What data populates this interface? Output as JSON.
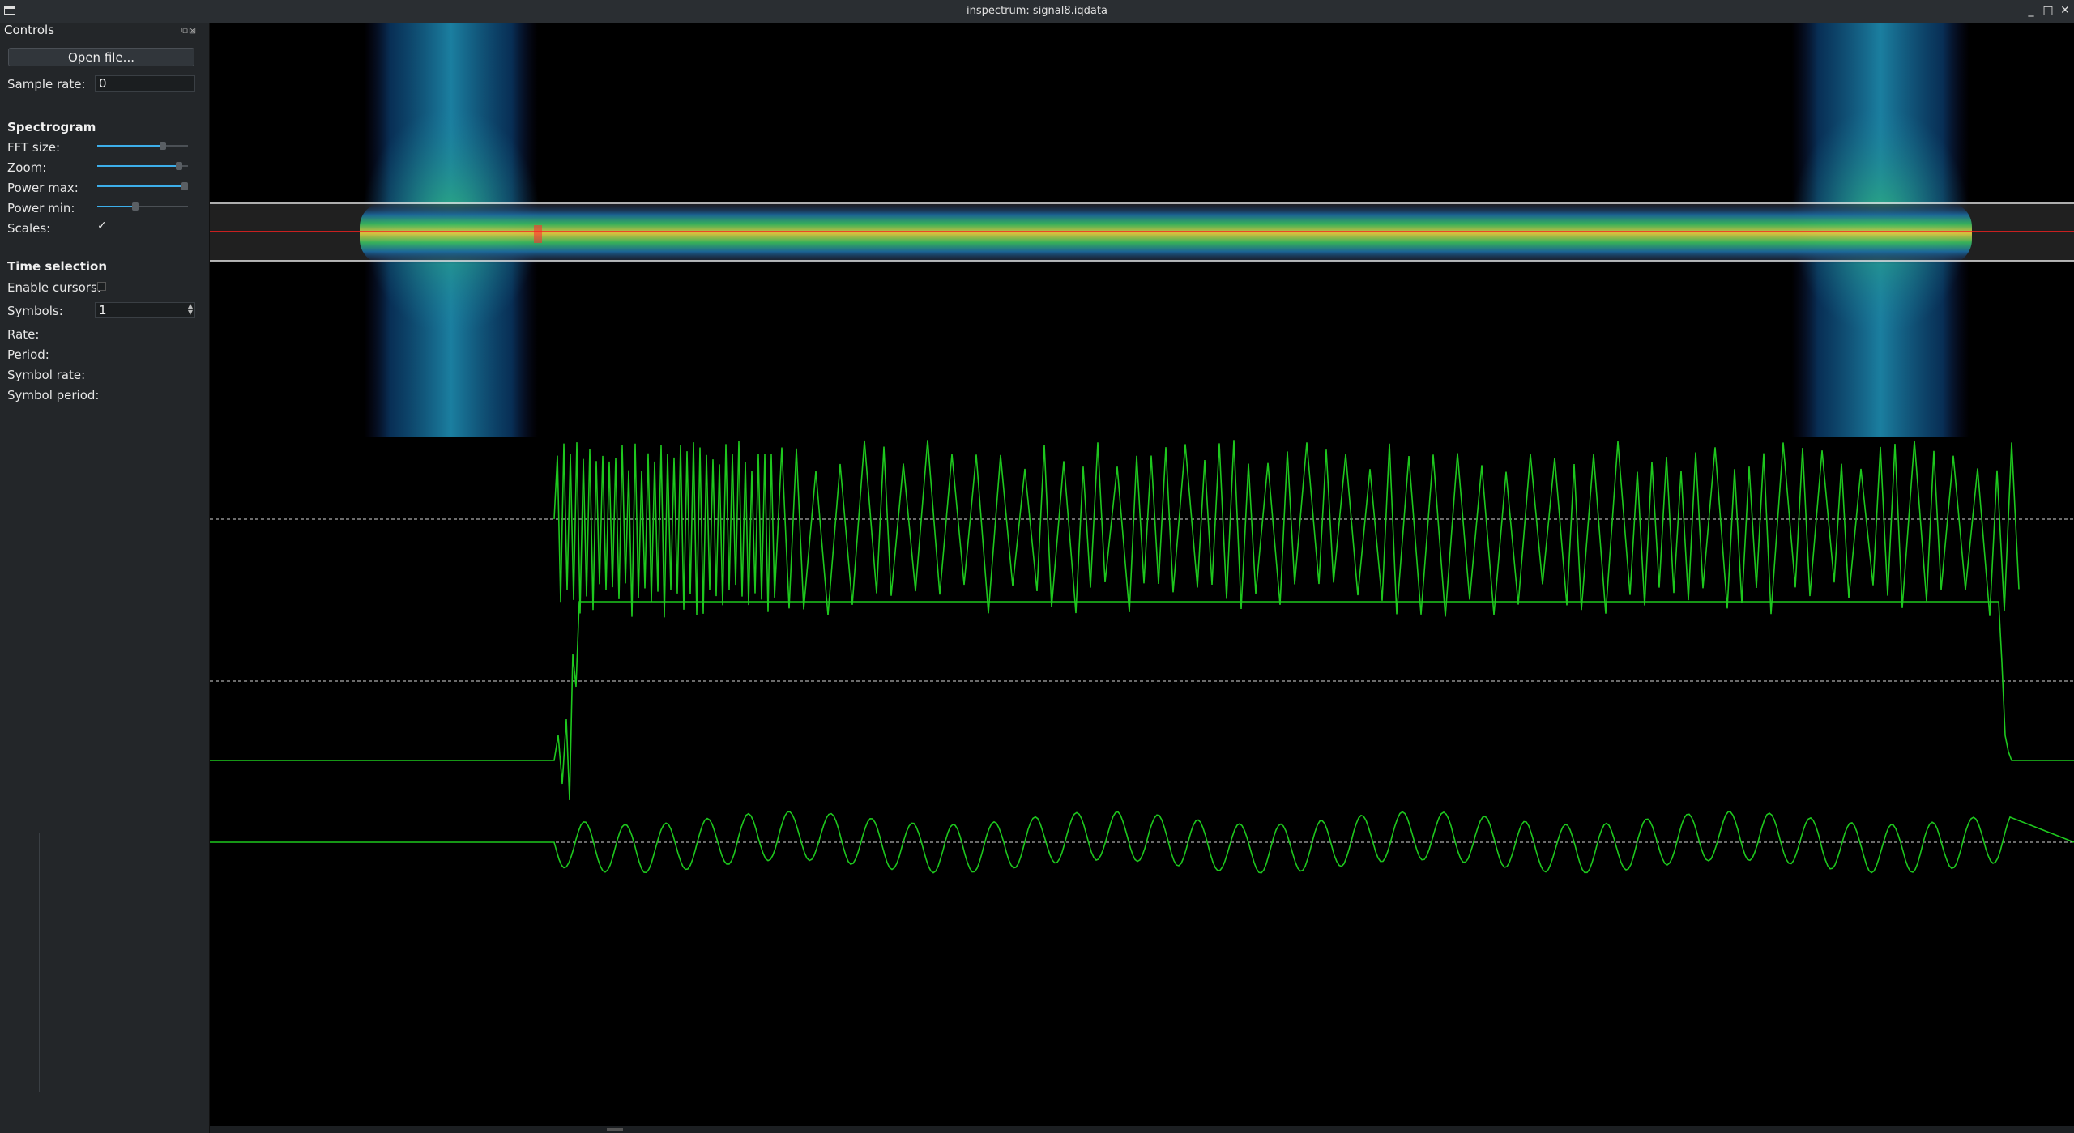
{
  "window": {
    "title": "inspectrum: signal8.iqdata",
    "minimize": "_",
    "maximize": "□",
    "close": "✕"
  },
  "dock": {
    "title": "Controls",
    "open_button": "Open file...",
    "sample_rate_label": "Sample rate:",
    "sample_rate_value": "0",
    "spectrogram_header": "Spectrogram",
    "fft_size_label": "FFT size:",
    "fft_size_level": 0.72,
    "zoom_label": "Zoom:",
    "zoom_level": 0.9,
    "power_max_label": "Power max:",
    "power_max_level": 1.0,
    "power_min_label": "Power min:",
    "power_min_level": 0.42,
    "scales_label": "Scales:",
    "scales_checked": "✓",
    "time_selection_header": "Time selection",
    "enable_cursors_label": "Enable cursors:",
    "symbols_label": "Symbols:",
    "symbols_value": "1",
    "rate_label": "Rate:",
    "period_label": "Period:",
    "symbol_rate_label": "Symbol rate:",
    "symbol_period_label": "Symbol period:"
  },
  "colors": {
    "trace": "#1ec81e",
    "cursor_line": "#ff2020",
    "band_lines": "#e8e8e8",
    "accent": "#3daee9"
  }
}
